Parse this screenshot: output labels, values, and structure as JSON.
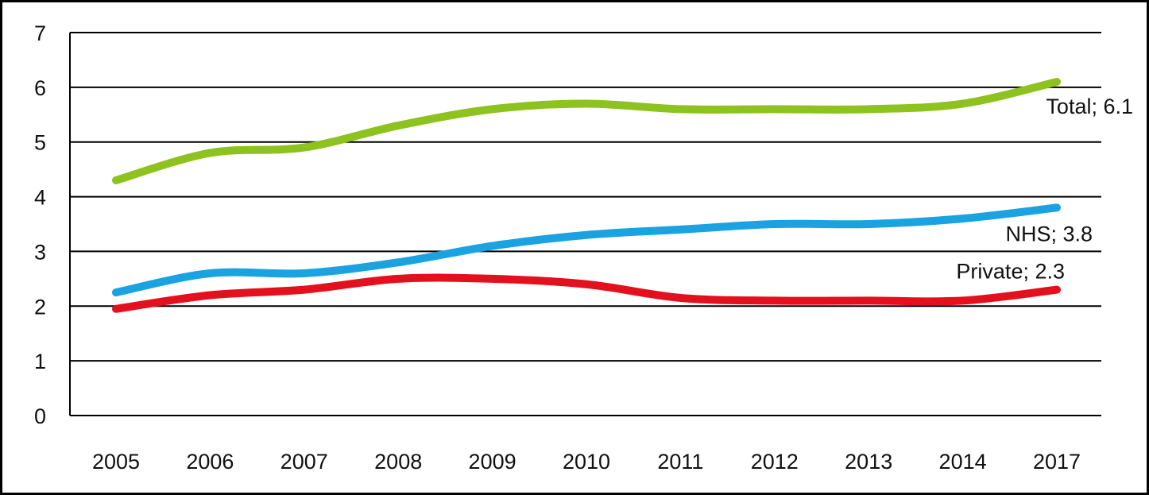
{
  "chart_data": {
    "type": "line",
    "title": "",
    "xlabel": "",
    "ylabel": "",
    "categories": [
      "2005",
      "2006",
      "2007",
      "2008",
      "2009",
      "2010",
      "2011",
      "2012",
      "2013",
      "2014",
      "2017"
    ],
    "ylim": [
      0,
      7
    ],
    "yticks": [
      "0",
      "1",
      "2",
      "3",
      "4",
      "5",
      "6",
      "7"
    ],
    "grid": true,
    "legend": "none",
    "series": [
      {
        "name": "Total",
        "color": "#8dc21f",
        "values": [
          4.3,
          4.8,
          4.9,
          5.3,
          5.6,
          5.7,
          5.6,
          5.6,
          5.6,
          5.7,
          6.1
        ],
        "end_label": "Total; 6.1"
      },
      {
        "name": "NHS",
        "color": "#1aa3e0",
        "values": [
          2.25,
          2.6,
          2.6,
          2.8,
          3.1,
          3.3,
          3.4,
          3.5,
          3.5,
          3.6,
          3.8
        ],
        "end_label": "NHS; 3.8"
      },
      {
        "name": "Private",
        "color": "#e3101d",
        "values": [
          1.95,
          2.2,
          2.3,
          2.5,
          2.5,
          2.4,
          2.15,
          2.1,
          2.1,
          2.1,
          2.3
        ],
        "end_label": "Private; 2.3"
      }
    ]
  }
}
